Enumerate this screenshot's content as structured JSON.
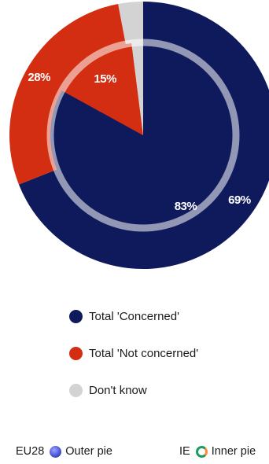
{
  "chart_data": {
    "type": "pie",
    "series": [
      {
        "name": "Outer pie",
        "region": "EU28",
        "values": [
          69,
          28,
          3
        ],
        "labels": [
          "69%",
          "28%",
          ""
        ]
      },
      {
        "name": "Inner pie",
        "region": "IE",
        "values": [
          83,
          15,
          2
        ],
        "labels": [
          "83%",
          "15%",
          ""
        ]
      }
    ],
    "categories": [
      "Total 'Concerned'",
      "Total 'Not concerned'",
      "Don't know"
    ],
    "colors": [
      "#0f1a5c",
      "#d42e12",
      "#d3d3d3"
    ],
    "legend_position": "bottom"
  },
  "legend": {
    "items": [
      {
        "label": "Total 'Concerned'",
        "color": "#0f1a5c"
      },
      {
        "label": "Total 'Not concerned'",
        "color": "#d42e12"
      },
      {
        "label": "Don't know",
        "color": "#d3d3d3"
      }
    ]
  },
  "footer": {
    "outer_code": "EU28",
    "outer_label": "Outer pie",
    "outer_icon": "eu-sphere-icon",
    "inner_code": "IE",
    "inner_label": "Inner pie",
    "inner_icon": "ireland-ring-icon"
  }
}
